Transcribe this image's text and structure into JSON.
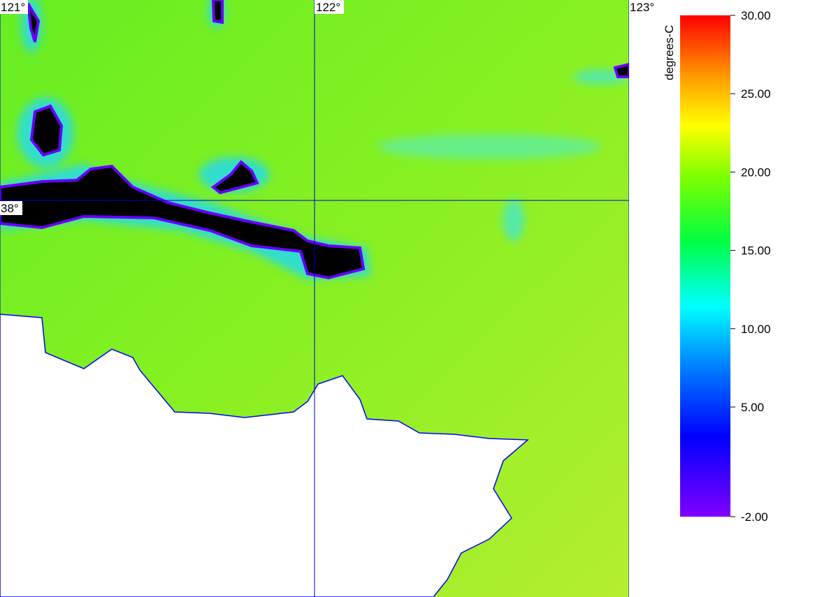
{
  "map": {
    "longitude_labels": [
      "121°",
      "122°",
      "123°"
    ],
    "latitude_labels": [
      "38°"
    ]
  },
  "colorbar": {
    "title": "degrees-C",
    "lim": [
      -2,
      30
    ],
    "ticks": [
      {
        "value": 30,
        "label": "30.00"
      },
      {
        "value": 25,
        "label": "25.00"
      },
      {
        "value": 20,
        "label": "20.00"
      },
      {
        "value": 15,
        "label": "15.00"
      },
      {
        "value": 10,
        "label": "10.00"
      },
      {
        "value": 5,
        "label": "5.00"
      },
      {
        "value": -2,
        "label": "-2.00"
      }
    ]
  }
}
